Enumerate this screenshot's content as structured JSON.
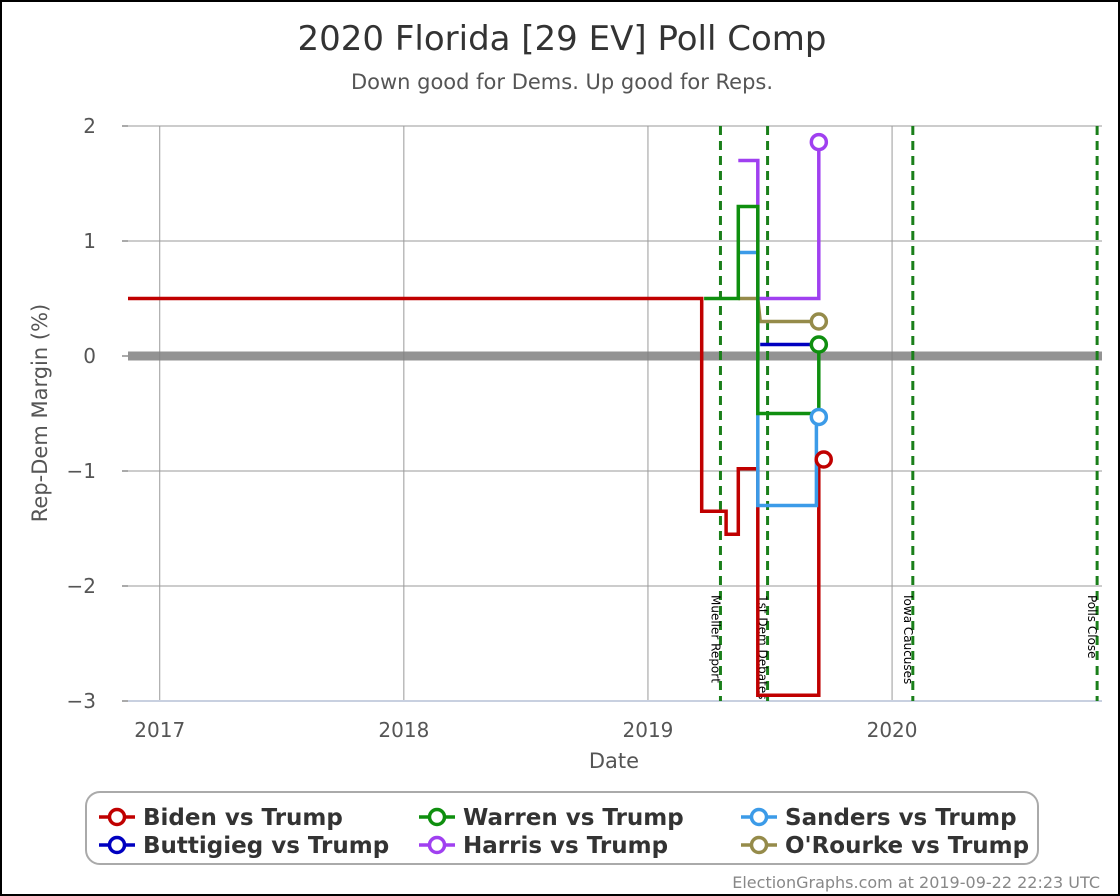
{
  "title": "2020 Florida [29 EV] Poll Comp",
  "subtitle": "Down good for Dems. Up good for Reps.",
  "footer": "ElectionGraphs.com at 2019-09-22 22:23 UTC",
  "colors": {
    "zero_line": "#808080",
    "grid": "#9a9a9a",
    "event_line": "#1a7f1a"
  },
  "chart_data": {
    "type": "line",
    "line_style": "step",
    "xlabel": "Date",
    "ylabel": "Rep-Dem Margin (%)",
    "xlim": [
      2016.87,
      2020.86
    ],
    "ylim": [
      -3,
      2
    ],
    "y_ticks": [
      {
        "value": 2,
        "label": "2"
      },
      {
        "value": 1,
        "label": "1"
      },
      {
        "value": 0,
        "label": "0"
      },
      {
        "value": -1,
        "label": "−1"
      },
      {
        "value": -2,
        "label": "−2"
      },
      {
        "value": -3,
        "label": "−3"
      }
    ],
    "x_ticks": [
      {
        "value": 2017,
        "label": "2017"
      },
      {
        "value": 2018,
        "label": "2018"
      },
      {
        "value": 2019,
        "label": "2019"
      },
      {
        "value": 2020,
        "label": "2020"
      }
    ],
    "grid": true,
    "events": [
      {
        "x": 2019.297,
        "label": "Mueller Report"
      },
      {
        "x": 2019.49,
        "label": "1st Dem Debates"
      },
      {
        "x": 2020.085,
        "label": "Iowa Caucuses"
      },
      {
        "x": 2020.84,
        "label": "Polls Close"
      }
    ],
    "legend_position": "bottom",
    "series": [
      {
        "name": "Biden vs Trump",
        "color": "#c00000",
        "end_marker": true,
        "points": [
          [
            2016.87,
            0.5
          ],
          [
            2019.22,
            0.5
          ],
          [
            2019.22,
            -1.35
          ],
          [
            2019.32,
            -1.35
          ],
          [
            2019.32,
            -1.55
          ],
          [
            2019.37,
            -1.55
          ],
          [
            2019.37,
            -0.98
          ],
          [
            2019.45,
            -0.98
          ],
          [
            2019.45,
            -2.95
          ],
          [
            2019.7,
            -2.95
          ],
          [
            2019.7,
            -0.9
          ],
          [
            2019.72,
            -0.9
          ]
        ]
      },
      {
        "name": "Buttigieg vs Trump",
        "color": "#0000c0",
        "end_marker": false,
        "points": [
          [
            2019.46,
            0.1
          ],
          [
            2019.7,
            0.1
          ]
        ]
      },
      {
        "name": "Sanders vs Trump",
        "color": "#3c9be8",
        "end_marker": true,
        "points": [
          [
            2019.37,
            0.9
          ],
          [
            2019.45,
            0.9
          ],
          [
            2019.45,
            -1.3
          ],
          [
            2019.69,
            -1.3
          ],
          [
            2019.69,
            -0.53
          ],
          [
            2019.7,
            -0.53
          ]
        ]
      },
      {
        "name": "O'Rourke vs Trump",
        "color": "#958b4a",
        "end_marker": true,
        "points": [
          [
            2019.37,
            0.5
          ],
          [
            2019.45,
            0.5
          ],
          [
            2019.46,
            0.3
          ],
          [
            2019.7,
            0.3
          ]
        ]
      },
      {
        "name": "Harris vs Trump",
        "color": "#a040f0",
        "end_marker": true,
        "points": [
          [
            2019.37,
            1.7
          ],
          [
            2019.45,
            1.7
          ],
          [
            2019.45,
            0.5
          ],
          [
            2019.7,
            0.5
          ],
          [
            2019.7,
            1.86
          ]
        ]
      },
      {
        "name": "Warren vs Trump",
        "color": "#0f8f0f",
        "end_marker": true,
        "points": [
          [
            2019.23,
            0.5
          ],
          [
            2019.37,
            0.5
          ],
          [
            2019.37,
            1.3
          ],
          [
            2019.45,
            1.3
          ],
          [
            2019.45,
            -0.5
          ],
          [
            2019.7,
            -0.5
          ],
          [
            2019.7,
            0.1
          ]
        ]
      }
    ],
    "legend": [
      {
        "label": "Biden vs Trump",
        "color": "#c00000"
      },
      {
        "label": "Warren vs Trump",
        "color": "#0f8f0f"
      },
      {
        "label": "Sanders vs Trump",
        "color": "#3c9be8"
      },
      {
        "label": "Buttigieg vs Trump",
        "color": "#0000c0"
      },
      {
        "label": "Harris vs Trump",
        "color": "#a040f0"
      },
      {
        "label": "O'Rourke vs Trump",
        "color": "#958b4a"
      }
    ]
  }
}
